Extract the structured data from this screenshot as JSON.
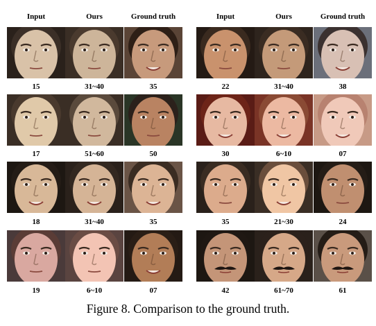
{
  "headers": [
    "Input",
    "Ours",
    "Ground truth",
    "Input",
    "Ours",
    "Ground truth"
  ],
  "rows": [
    [
      "15",
      "31~40",
      "35",
      "22",
      "31~40",
      "38"
    ],
    [
      "17",
      "51~60",
      "50",
      "30",
      "6~10",
      "07"
    ],
    [
      "18",
      "31~40",
      "35",
      "35",
      "21~30",
      "24"
    ],
    [
      "19",
      "6~10",
      "07",
      "42",
      "61~70",
      "61"
    ]
  ],
  "faces": [
    [
      {
        "skin": "#d9c2a8",
        "bg": "#2a211b",
        "hair": "#3b2f27",
        "mouth": "neutral"
      },
      {
        "skin": "#cdb59a",
        "bg": "#3a2e25",
        "hair": "#4a3a2e",
        "mouth": "neutral"
      },
      {
        "skin": "#c79a7c",
        "bg": "#5a4436",
        "hair": "#2e1f16",
        "mouth": "smile"
      },
      {
        "skin": "#c9926d",
        "bg": "#241a14",
        "hair": "#3a2a1f",
        "mouth": "neutral"
      },
      {
        "skin": "#c49a79",
        "bg": "#2e241d",
        "hair": "#3a2c22",
        "mouth": "neutral"
      },
      {
        "skin": "#d8c0b4",
        "bg": "#6b6f7a",
        "hair": "#3b3130",
        "mouth": "smile"
      }
    ],
    [
      {
        "skin": "#e0c9a9",
        "bg": "#3a2e25",
        "hair": "#4a3a2e",
        "mouth": "neutral"
      },
      {
        "skin": "#d1b89d",
        "bg": "#3a2e25",
        "hair": "#5a4a3c",
        "mouth": "neutral"
      },
      {
        "skin": "#b98362",
        "bg": "#2a3526",
        "hair": "#2b211b",
        "mouth": "neutral"
      },
      {
        "skin": "#e7b9a2",
        "bg": "#5a1c16",
        "hair": "#6d2418",
        "mouth": "smile"
      },
      {
        "skin": "#ecb9a2",
        "bg": "#7a3426",
        "hair": "#8a4a34",
        "mouth": "smile"
      },
      {
        "skin": "#f0c9b9",
        "bg": "#c79a86",
        "hair": "#b88270",
        "mouth": "smile"
      }
    ],
    [
      {
        "skin": "#d8b898",
        "bg": "#1d1712",
        "hair": "#241c16",
        "mouth": "smile"
      },
      {
        "skin": "#d5b496",
        "bg": "#2a211b",
        "hair": "#332820",
        "mouth": "smile"
      },
      {
        "skin": "#dcb495",
        "bg": "#6a5446",
        "hair": "#3a2c22",
        "mouth": "smile"
      },
      {
        "skin": "#dcab8c",
        "bg": "#2a211b",
        "hair": "#3a2c22",
        "mouth": "neutral"
      },
      {
        "skin": "#f0c6a4",
        "bg": "#3a2e25",
        "hair": "#6a4e3c",
        "mouth": "smile"
      },
      {
        "skin": "#c08f70",
        "bg": "#1d1712",
        "hair": "#241c16",
        "mouth": "neutral"
      }
    ],
    [
      {
        "skin": "#d9a8a0",
        "bg": "#4a3a3a",
        "hair": "#5a3c36",
        "mouth": "neutral"
      },
      {
        "skin": "#f3c4b4",
        "bg": "#5a4440",
        "hair": "#6a4c44",
        "mouth": "neutral"
      },
      {
        "skin": "#b27d57",
        "bg": "#241a14",
        "hair": "#2a1e16",
        "mouth": "smile"
      },
      {
        "skin": "#c49578",
        "bg": "#1d1712",
        "hair": "#1f1813",
        "mouth": "mustache"
      },
      {
        "skin": "#d6a888",
        "bg": "#2a211b",
        "hair": "#2b211b",
        "mouth": "mustache"
      },
      {
        "skin": "#c99a7c",
        "bg": "#5a5048",
        "hair": "#241c16",
        "mouth": "mustache"
      }
    ]
  ],
  "caption": "Figure 8. Comparison to the ground truth."
}
